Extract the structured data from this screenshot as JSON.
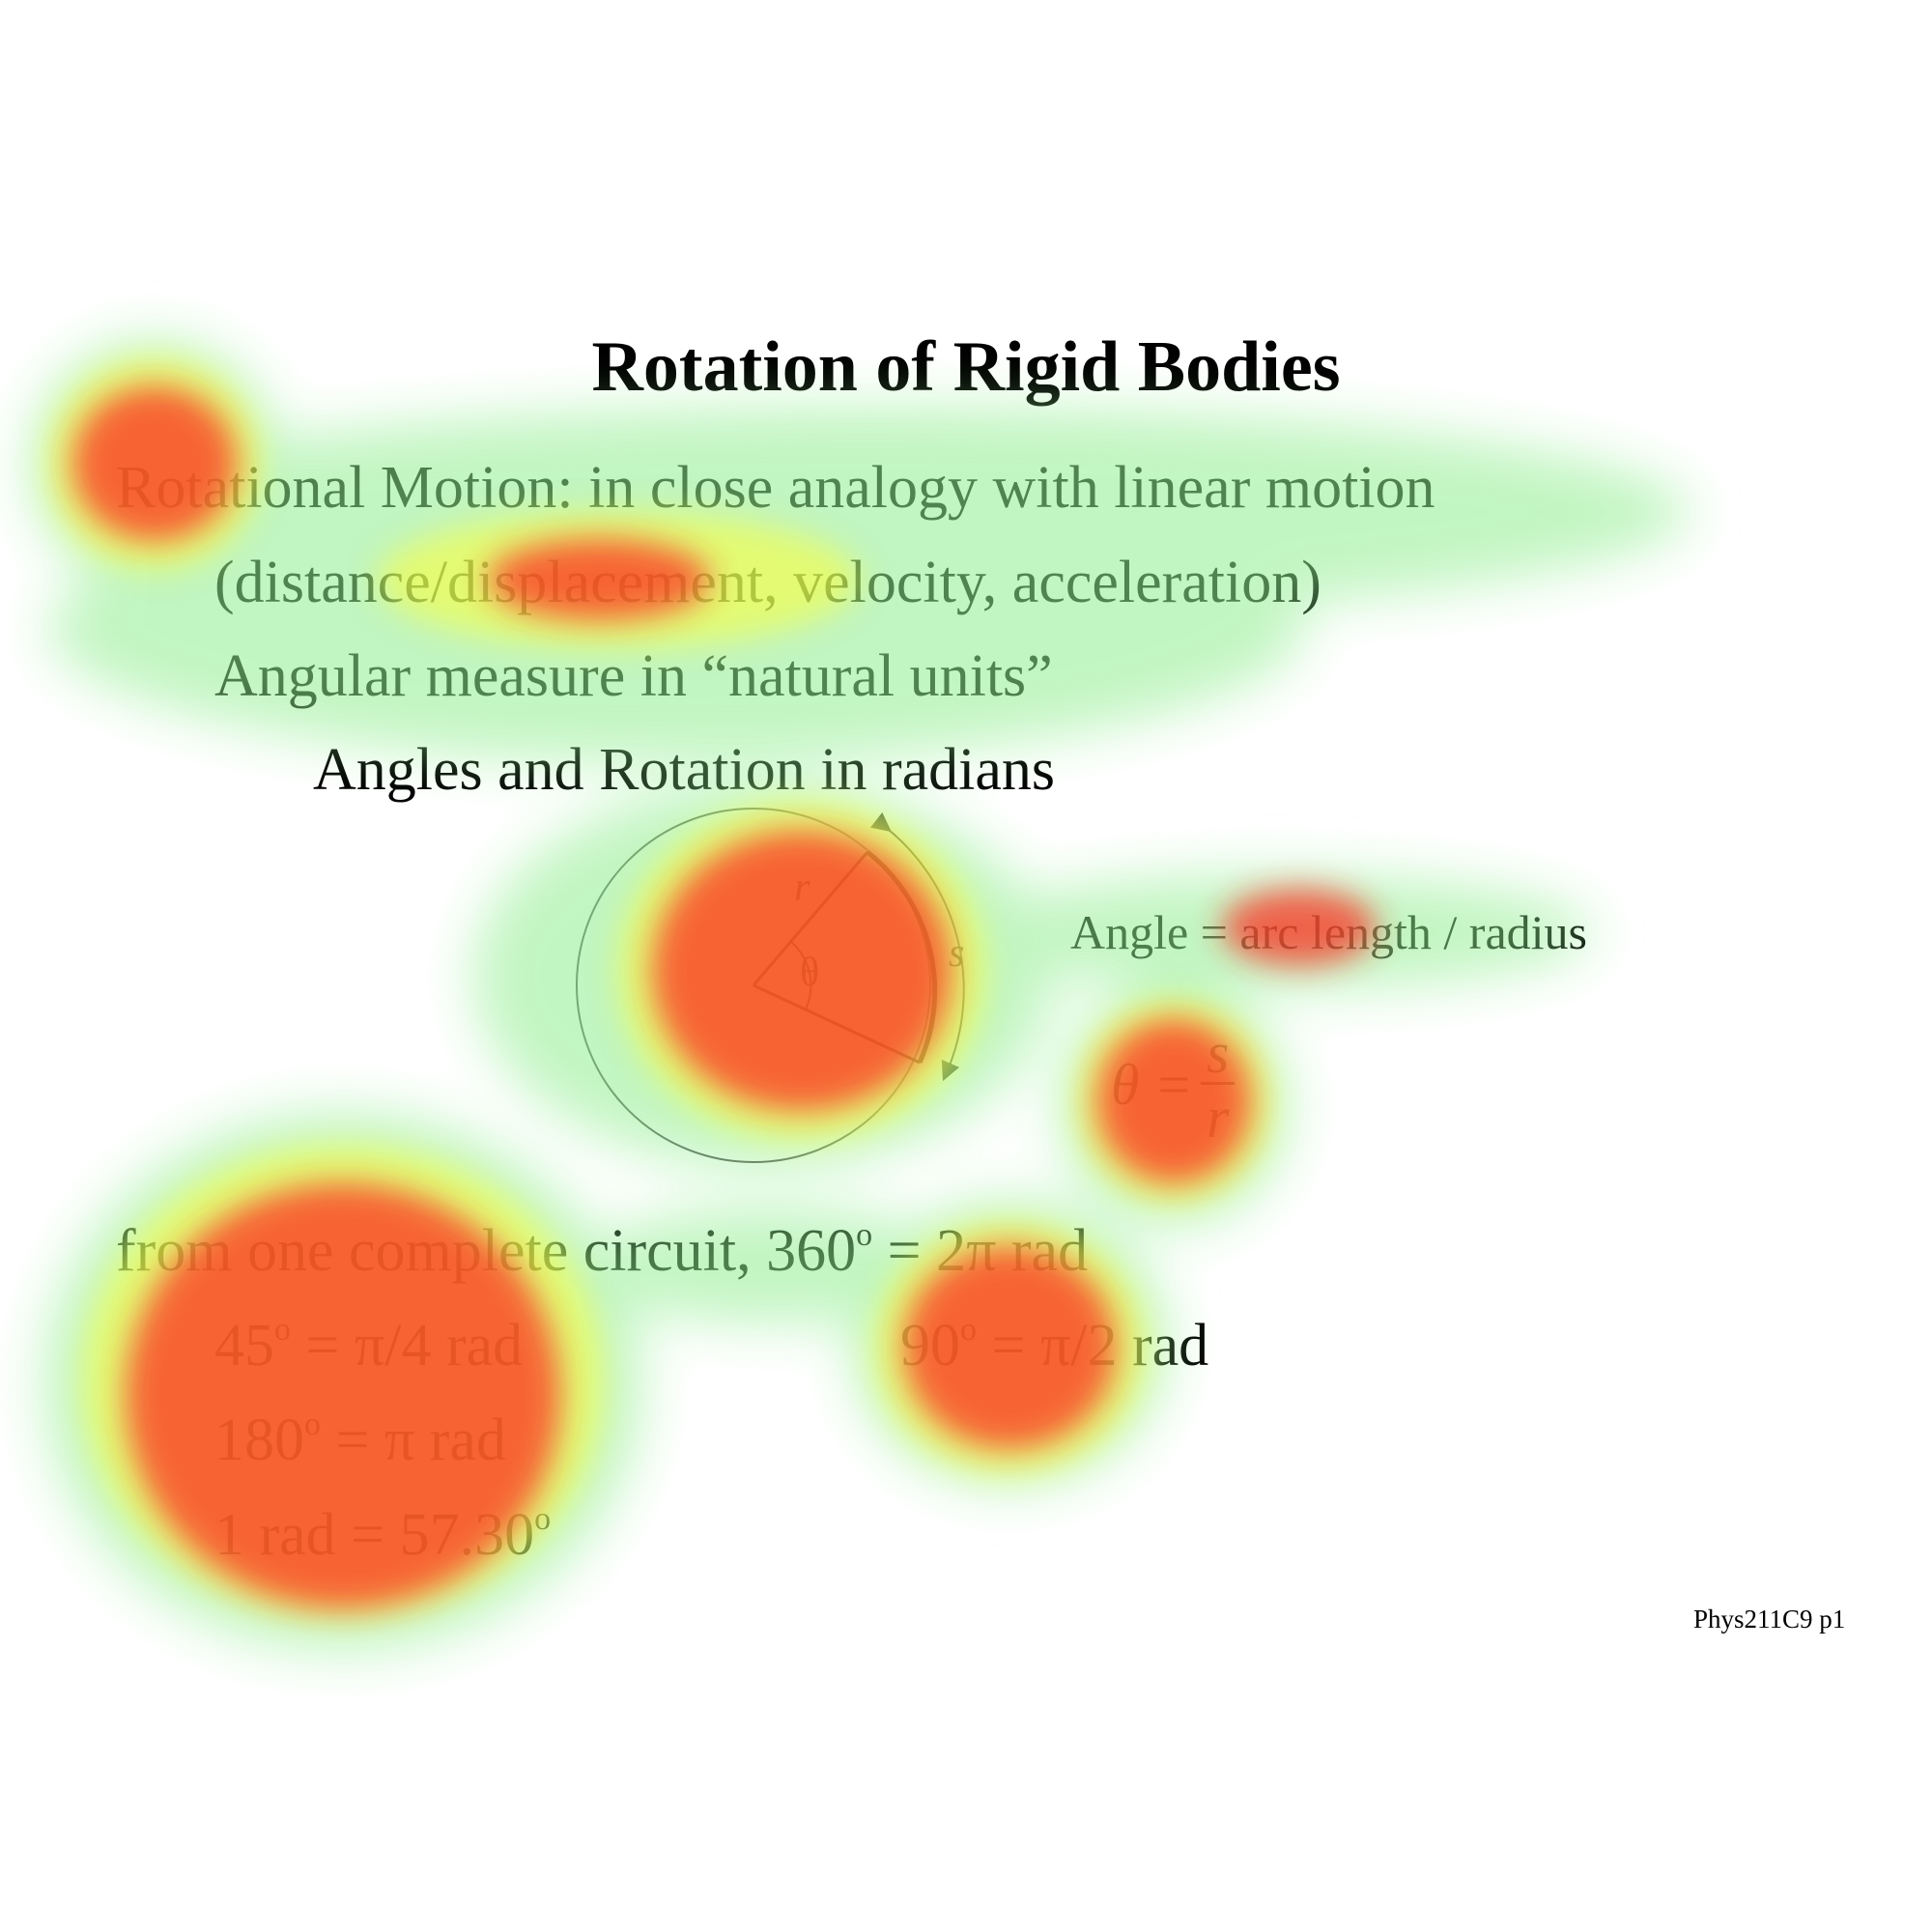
{
  "slide": {
    "title": "Rotation of Rigid Bodies",
    "lines": [
      "Rotational Motion: in close analogy with linear motion",
      "(distance/displacement, velocity, acceleration)",
      "Angular measure in “natural units”",
      "Angles and Rotation in radians"
    ],
    "diagram": {
      "radius_label": "r",
      "angle_label": "θ",
      "arc_label": "s"
    },
    "caption": "Angle = arc length / radius",
    "formula": {
      "lhs": "θ =",
      "numerator": "s",
      "denominator": "r"
    },
    "conversions": {
      "full_circle": {
        "text": "from one complete circuit, 360",
        "deg": "o",
        "rest": "  = 2π rad"
      },
      "deg45": {
        "text": "45",
        "deg": "o",
        "rest": " = π/4 rad"
      },
      "deg90": {
        "text": "90",
        "deg": "o",
        "rest": " = π/2 rad"
      },
      "deg180": {
        "text": "180",
        "deg": "o",
        "rest": " = π rad"
      },
      "rad1": {
        "text": "1 rad = 57.30",
        "deg": "o",
        "rest": ""
      }
    },
    "page_ref": "Phys211C9 p1"
  },
  "heatmap": {
    "colors": {
      "low": "#90ee90",
      "mid": "#ffff33",
      "high": "#ff2a1f"
    }
  }
}
